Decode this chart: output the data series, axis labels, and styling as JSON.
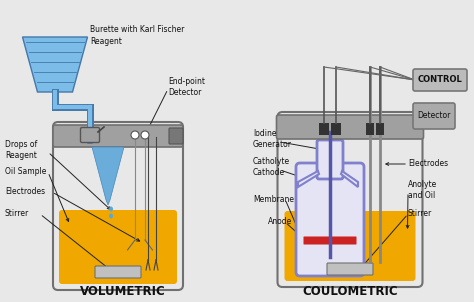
{
  "bg_color": "#e8e8e8",
  "title_vol": "VOLUMETRIC",
  "title_coul": "COULOMETRIC",
  "label_burette": "Burette with Karl Fischer\nReagent",
  "label_endpoint": "End-point\nDetector",
  "label_drops": "Drops of\nReagent",
  "label_oil": "Oil Sample",
  "label_electrodes_vol": "Electrodes",
  "label_stirrer_vol": "Stirrer",
  "label_control": "CONTROL",
  "label_detector": "Detector",
  "label_iodine": "Iodine\nGenerator",
  "label_catholyte": "Catholyte\nCathode",
  "label_membrane": "Membrane",
  "label_anode": "Anode",
  "label_electrodes_coul": "Electrodes",
  "label_anolyte": "Anolyte\nand Oil",
  "label_stirrer_coul": "Stirrer",
  "color_blue_reagent": "#6aaddb",
  "color_blue_burette": "#7bbde8",
  "color_yellow": "#f0a800",
  "color_gray_cap": "#a0a0a0",
  "color_gray_dark": "#707070",
  "color_gray_light": "#d0d0d0",
  "color_purple": "#8080cc",
  "color_red": "#cc2222",
  "color_silver": "#c0c0c0",
  "color_white": "#f0f0f0",
  "color_flask_body": "#e8e8e8",
  "color_text": "#111111",
  "color_drop": "#55aadd"
}
